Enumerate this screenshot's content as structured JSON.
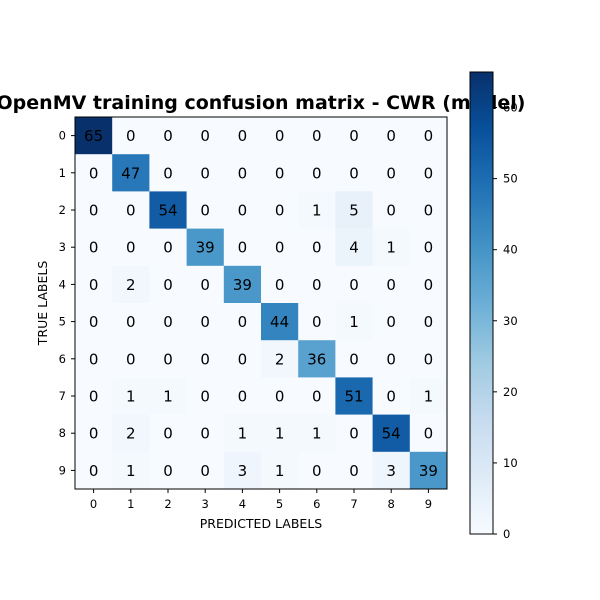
{
  "chart_data": {
    "type": "heatmap",
    "title": "OpenMV training confusion matrix - CWR (model)",
    "xlabel": "PREDICTED LABELS",
    "ylabel": "TRUE LABELS",
    "x_labels": [
      "0",
      "1",
      "2",
      "3",
      "4",
      "5",
      "6",
      "7",
      "8",
      "9"
    ],
    "y_labels": [
      "0",
      "1",
      "2",
      "3",
      "4",
      "5",
      "6",
      "7",
      "8",
      "9"
    ],
    "values": [
      [
        65,
        0,
        0,
        0,
        0,
        0,
        0,
        0,
        0,
        0
      ],
      [
        0,
        47,
        0,
        0,
        0,
        0,
        0,
        0,
        0,
        0
      ],
      [
        0,
        0,
        54,
        0,
        0,
        0,
        1,
        5,
        0,
        0
      ],
      [
        0,
        0,
        0,
        39,
        0,
        0,
        0,
        4,
        1,
        0
      ],
      [
        0,
        2,
        0,
        0,
        39,
        0,
        0,
        0,
        0,
        0
      ],
      [
        0,
        0,
        0,
        0,
        0,
        44,
        0,
        1,
        0,
        0
      ],
      [
        0,
        0,
        0,
        0,
        0,
        2,
        36,
        0,
        0,
        0
      ],
      [
        0,
        1,
        1,
        0,
        0,
        0,
        0,
        51,
        0,
        1
      ],
      [
        0,
        2,
        0,
        0,
        1,
        1,
        1,
        0,
        54,
        0
      ],
      [
        0,
        1,
        0,
        0,
        3,
        1,
        0,
        0,
        3,
        39
      ]
    ],
    "colormap": "Blues",
    "vmin": 0,
    "vmax": 65,
    "colorbar_ticks": [
      0,
      10,
      20,
      30,
      40,
      50,
      60
    ],
    "grid": false
  }
}
